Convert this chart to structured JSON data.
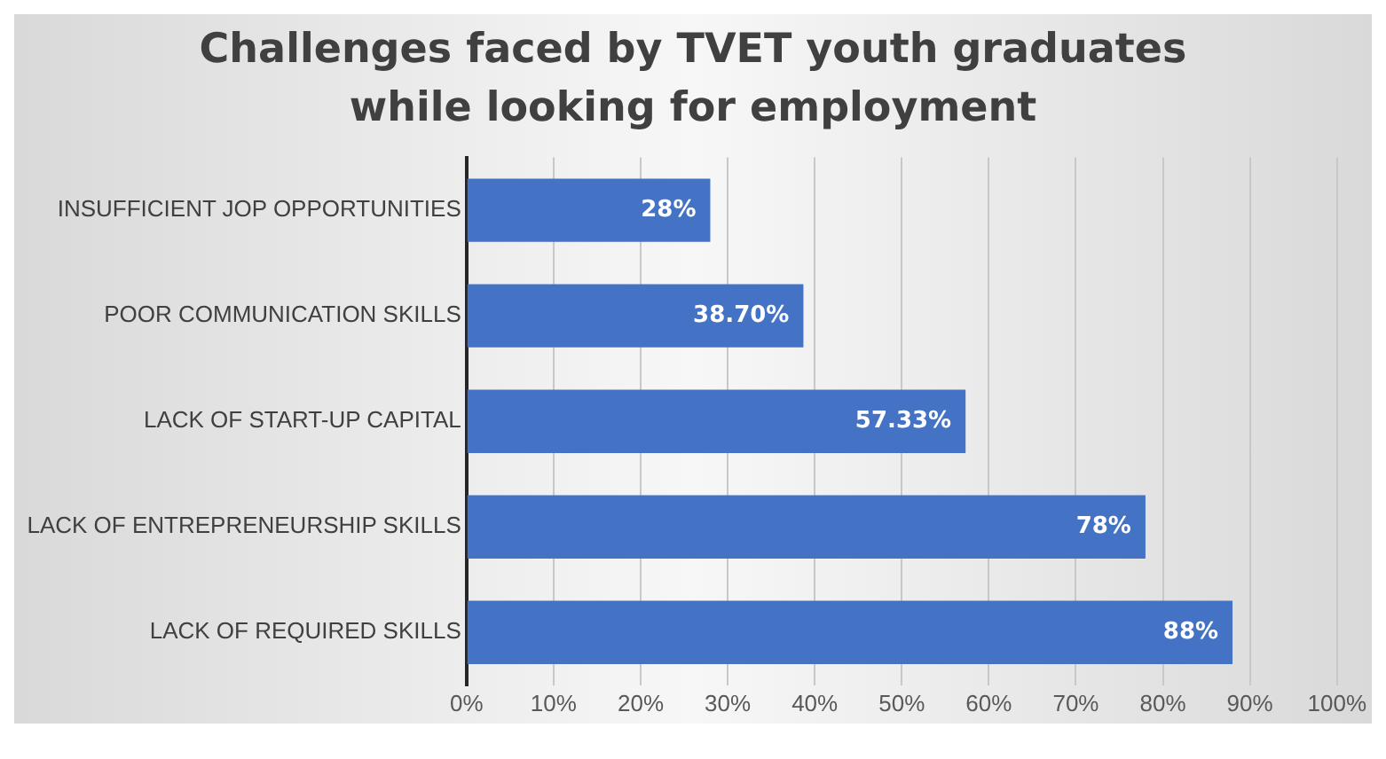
{
  "chart_data": {
    "type": "bar",
    "orientation": "horizontal",
    "title": "Challenges faced by TVET youth graduates while looking for employment",
    "categories": [
      "INSUFFICIENT JOP OPPORTUNITIES",
      "POOR COMMUNICATION SKILLS",
      "LACK OF START-UP CAPITAL",
      "LACK OF ENTREPRENEURSHIP SKILLS",
      "LACK OF REQUIRED SKILLS"
    ],
    "values": [
      28,
      38.7,
      57.33,
      78,
      88
    ],
    "value_labels": [
      "28%",
      "38.70%",
      "57.33%",
      "78%",
      "88%"
    ],
    "color": "#4472c4",
    "xlim": [
      0,
      100
    ],
    "xticks": [
      {
        "value": 0,
        "label": "0%"
      },
      {
        "value": 10,
        "label": "10%"
      },
      {
        "value": 20,
        "label": "20%"
      },
      {
        "value": 30,
        "label": "30%"
      },
      {
        "value": 40,
        "label": "40%"
      },
      {
        "value": 50,
        "label": "50%"
      },
      {
        "value": 60,
        "label": "60%"
      },
      {
        "value": 70,
        "label": "70%"
      },
      {
        "value": 80,
        "label": "80%"
      },
      {
        "value": 90,
        "label": "90%"
      },
      {
        "value": 100,
        "label": "100%"
      }
    ],
    "grid": "x"
  }
}
